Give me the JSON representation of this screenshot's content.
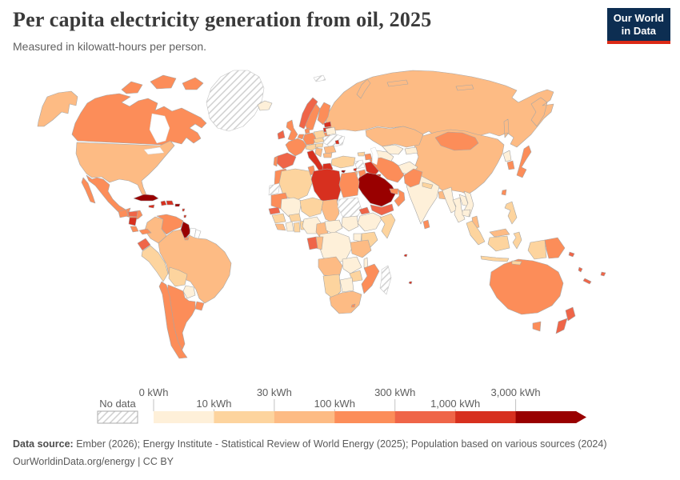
{
  "header": {
    "title": "Per capita electricity generation from oil, 2025",
    "subtitle": "Measured in kilowatt-hours per person.",
    "logo": {
      "line1": "Our World",
      "line2": "in Data",
      "bg_color": "#0d2e52",
      "accent_color": "#dc2a16"
    }
  },
  "legend": {
    "no_data_label": "No data",
    "ticks": [
      "0 kWh",
      "10 kWh",
      "30 kWh",
      "100 kWh",
      "300 kWh",
      "1,000 kWh",
      "3,000 kWh"
    ],
    "tick_color": "#c2c2c2",
    "hatch_line_color": "#cccccc"
  },
  "footer": {
    "source_label": "Data source:",
    "source_text": " Ember (2026); Energy Institute - Statistical Review of World Energy (2025); Population based on various sources (2024)",
    "line2": "OurWorldinData.org/energy | CC BY"
  },
  "chart_data": {
    "type": "choropleth",
    "title": "Per capita electricity generation from oil, 2025",
    "subtitle": "Measured in kilowatt-hours per person.",
    "unit": "kWh per person",
    "year": 2025,
    "legend_style": "binned color scale with arrow for top bin; hatched = no data",
    "bins": [
      {
        "range": "0-10 kWh",
        "color": "#fef0d9"
      },
      {
        "range": "10-30 kWh",
        "color": "#fdd49e"
      },
      {
        "range": "30-100 kWh",
        "color": "#fdbb84"
      },
      {
        "range": "100-300 kWh",
        "color": "#fc8d59"
      },
      {
        "range": "300-1,000 kWh",
        "color": "#ef6548"
      },
      {
        "range": "1,000-3,000 kWh",
        "color": "#d7301f"
      },
      {
        "range": "3,000+ kWh",
        "color": "#990000"
      }
    ],
    "countries": {
      "canada": {
        "name": "Canada",
        "bin": 3
      },
      "usa": {
        "name": "United States",
        "bin": 2
      },
      "mexico": {
        "name": "Mexico",
        "bin": 3
      },
      "greenland": {
        "name": "Greenland",
        "bin": "no_data"
      },
      "iceland": {
        "name": "Iceland",
        "bin": 0
      },
      "guatemala": {
        "name": "Guatemala",
        "bin": 3
      },
      "honduras": {
        "name": "Honduras",
        "bin": 4
      },
      "nicaragua": {
        "name": "Nicaragua",
        "bin": 5
      },
      "costarica": {
        "name": "Costa Rica",
        "bin": 3
      },
      "panama": {
        "name": "Panama",
        "bin": 3
      },
      "cuba": {
        "name": "Cuba",
        "bin": 6
      },
      "jamaica": {
        "name": "Jamaica",
        "bin": 5
      },
      "haiti": {
        "name": "Haiti",
        "bin": 5
      },
      "dominicanrep": {
        "name": "Dominican Republic",
        "bin": 5
      },
      "puertorico": {
        "name": "Puerto Rico",
        "bin": 6
      },
      "lesserantilles": {
        "name": "Lesser Antilles",
        "bin": 5
      },
      "trinidad": {
        "name": "Trinidad and Tobago",
        "bin": 3
      },
      "colombia": {
        "name": "Colombia",
        "bin": 2
      },
      "venezuela": {
        "name": "Venezuela",
        "bin": 3
      },
      "guyana": {
        "name": "Guyana",
        "bin": 6
      },
      "suriname": {
        "name": "Suriname",
        "bin": "none"
      },
      "frenchguiana": {
        "name": "French Guiana",
        "bin": "none"
      },
      "ecuador": {
        "name": "Ecuador",
        "bin": 4
      },
      "peru": {
        "name": "Peru",
        "bin": 1
      },
      "brazil": {
        "name": "Brazil",
        "bin": 2
      },
      "bolivia": {
        "name": "Bolivia",
        "bin": 1
      },
      "paraguay": {
        "name": "Paraguay",
        "bin": 0
      },
      "uruguay": {
        "name": "Uruguay",
        "bin": 3
      },
      "chile": {
        "name": "Chile",
        "bin": 3
      },
      "argentina": {
        "name": "Argentina",
        "bin": 3
      },
      "ireland": {
        "name": "Ireland",
        "bin": 4
      },
      "uk": {
        "name": "United Kingdom",
        "bin": 3
      },
      "portugal": {
        "name": "Portugal",
        "bin": 3
      },
      "spain": {
        "name": "Spain",
        "bin": 4
      },
      "france": {
        "name": "France",
        "bin": 3
      },
      "benelux": {
        "name": "Netherlands/Belgium",
        "bin": 3
      },
      "germany": {
        "name": "Germany",
        "bin": 3
      },
      "denmark": {
        "name": "Denmark",
        "bin": 3
      },
      "norway": {
        "name": "Norway",
        "bin": 4
      },
      "sweden": {
        "name": "Sweden",
        "bin": 3
      },
      "finland": {
        "name": "Finland",
        "bin": 3
      },
      "estonia": {
        "name": "Estonia",
        "bin": 5
      },
      "latvia": {
        "name": "Latvia",
        "bin": 5
      },
      "lithuania": {
        "name": "Lithuania",
        "bin": 3
      },
      "poland": {
        "name": "Poland",
        "bin": 1
      },
      "belarus": {
        "name": "Belarus",
        "bin": 0
      },
      "ukraine": {
        "name": "Ukraine",
        "bin": "no_data"
      },
      "moldova": {
        "name": "Moldova",
        "bin": 5
      },
      "czechia": {
        "name": "Czechia/Slovakia",
        "bin": 1
      },
      "switzerland": {
        "name": "Switzerland/Austria",
        "bin": 1
      },
      "hungary": {
        "name": "Hungary",
        "bin": 1
      },
      "romania": {
        "name": "Romania",
        "bin": 2
      },
      "balkans": {
        "name": "Serbia/Bosnia/Croatia",
        "bin": 2
      },
      "bulgaria": {
        "name": "Bulgaria",
        "bin": 2
      },
      "italy": {
        "name": "Italy",
        "bin": 5
      },
      "greece": {
        "name": "Greece",
        "bin": 5
      },
      "turkey": {
        "name": "Turkey",
        "bin": 1
      },
      "cyprus": {
        "name": "Cyprus",
        "bin": 6
      },
      "svalbard": {
        "name": "Svalbard",
        "bin": "no_data"
      },
      "georgia": {
        "name": "Georgia",
        "bin": 1
      },
      "azerbaijan": {
        "name": "Azerbaijan",
        "bin": 3
      },
      "russia": {
        "name": "Russia",
        "bin": 2
      },
      "kazakhstan": {
        "name": "Kazakhstan",
        "bin": 2
      },
      "uzbekistan": {
        "name": "Uzbekistan",
        "bin": 0
      },
      "turkmenistan": {
        "name": "Turkmenistan",
        "bin": 0
      },
      "kyrgyzstan": {
        "name": "Kyrgyzstan/Tajikistan",
        "bin": 0
      },
      "mongolia": {
        "name": "Mongolia",
        "bin": 3
      },
      "china": {
        "name": "China",
        "bin": 2
      },
      "northkorea": {
        "name": "North Korea",
        "bin": 0
      },
      "southkorea": {
        "name": "South Korea",
        "bin": 3
      },
      "japan": {
        "name": "Japan",
        "bin": 3
      },
      "taiwan": {
        "name": "Taiwan",
        "bin": 3
      },
      "syria": {
        "name": "Syria",
        "bin": "no_data"
      },
      "lebanon": {
        "name": "Lebanon",
        "bin": 5
      },
      "israel": {
        "name": "Israel",
        "bin": 2
      },
      "jordan": {
        "name": "Jordan",
        "bin": 3
      },
      "iraq": {
        "name": "Iraq",
        "bin": 5
      },
      "kuwait": {
        "name": "Kuwait",
        "bin": 5
      },
      "saudiarabia": {
        "name": "Saudi Arabia",
        "bin": 6
      },
      "uae": {
        "name": "United Arab Emirates/Qatar",
        "bin": 3
      },
      "oman": {
        "name": "Oman",
        "bin": 3
      },
      "yemen": {
        "name": "Yemen",
        "bin": 4
      },
      "iran": {
        "name": "Iran",
        "bin": 3
      },
      "afghanistan": {
        "name": "Afghanistan",
        "bin": 0
      },
      "pakistan": {
        "name": "Pakistan",
        "bin": 3
      },
      "india": {
        "name": "India",
        "bin": 0
      },
      "nepal": {
        "name": "Nepal",
        "bin": 1
      },
      "bangladesh": {
        "name": "Bangladesh",
        "bin": 2
      },
      "srilanka": {
        "name": "Sri Lanka",
        "bin": 3
      },
      "myanmar": {
        "name": "Myanmar",
        "bin": 0
      },
      "thailand": {
        "name": "Thailand",
        "bin": 0
      },
      "laos": {
        "name": "Laos",
        "bin": 0
      },
      "vietnam": {
        "name": "Vietnam",
        "bin": 0
      },
      "cambodia": {
        "name": "Cambodia",
        "bin": 0
      },
      "malaysia": {
        "name": "Malaysia",
        "bin": 2
      },
      "philippines": {
        "name": "Philippines",
        "bin": 1
      },
      "indonesia": {
        "name": "Indonesia",
        "bin": 1
      },
      "png": {
        "name": "Papua New Guinea",
        "bin": 3
      },
      "australia": {
        "name": "Australia",
        "bin": 3
      },
      "newzealand": {
        "name": "New Zealand",
        "bin": 4
      },
      "solomon": {
        "name": "Solomon Islands",
        "bin": 4
      },
      "vanuatu": {
        "name": "Vanuatu",
        "bin": 4
      },
      "fiji": {
        "name": "Fiji",
        "bin": 4
      },
      "newcaledonia": {
        "name": "New Caledonia",
        "bin": 4
      },
      "morocco": {
        "name": "Morocco",
        "bin": 3
      },
      "wsahara": {
        "name": "Western Sahara",
        "bin": "no_data"
      },
      "algeria": {
        "name": "Algeria",
        "bin": 1
      },
      "tunisia": {
        "name": "Tunisia",
        "bin": 3
      },
      "libya": {
        "name": "Libya",
        "bin": 5
      },
      "egypt": {
        "name": "Egypt",
        "bin": 3
      },
      "mauritania": {
        "name": "Mauritania",
        "bin": 3
      },
      "mali": {
        "name": "Mali",
        "bin": 0
      },
      "niger": {
        "name": "Niger",
        "bin": 1
      },
      "chad": {
        "name": "Chad",
        "bin": 2
      },
      "sudan": {
        "name": "Sudan",
        "bin": "no_data"
      },
      "southsudan": {
        "name": "South Sudan",
        "bin": 0
      },
      "eritrea": {
        "name": "Eritrea",
        "bin": 4
      },
      "djibouti": {
        "name": "Djibouti",
        "bin": 4
      },
      "senegal": {
        "name": "Senegal",
        "bin": 4
      },
      "guinea": {
        "name": "Guinea",
        "bin": 1
      },
      "sierraleone": {
        "name": "Sierra Leone/Liberia",
        "bin": 2
      },
      "ivorycoast": {
        "name": "Cote d'Ivoire",
        "bin": 0
      },
      "ghana": {
        "name": "Ghana",
        "bin": 1
      },
      "togobenin": {
        "name": "Togo/Benin",
        "bin": 1
      },
      "burkinafaso": {
        "name": "Burkina Faso",
        "bin": 1
      },
      "nigeria": {
        "name": "Nigeria",
        "bin": 0
      },
      "cameroon": {
        "name": "Cameroon",
        "bin": 2
      },
      "car": {
        "name": "Central African Republic",
        "bin": 0
      },
      "ethiopia": {
        "name": "Ethiopia",
        "bin": 0
      },
      "somalia": {
        "name": "Somalia",
        "bin": 1
      },
      "kenya": {
        "name": "Kenya",
        "bin": 1
      },
      "uganda": {
        "name": "Uganda",
        "bin": 0
      },
      "rwandaburundi": {
        "name": "Rwanda/Burundi",
        "bin": 4
      },
      "drc": {
        "name": "Democratic Republic of Congo",
        "bin": 0
      },
      "congo": {
        "name": "Congo",
        "bin": 2
      },
      "gabon": {
        "name": "Gabon",
        "bin": 4
      },
      "tanzania": {
        "name": "Tanzania",
        "bin": 2
      },
      "angola": {
        "name": "Angola",
        "bin": 2
      },
      "zambia": {
        "name": "Zambia",
        "bin": 0
      },
      "malawi": {
        "name": "Malawi",
        "bin": 0
      },
      "mozambique": {
        "name": "Mozambique",
        "bin": 3
      },
      "zimbabwe": {
        "name": "Zimbabwe",
        "bin": 1
      },
      "botswana": {
        "name": "Botswana",
        "bin": 0
      },
      "namibia": {
        "name": "Namibia",
        "bin": 1
      },
      "southafrica": {
        "name": "South Africa",
        "bin": 2
      },
      "lesotho": {
        "name": "Lesotho",
        "bin": 3
      },
      "madagascar": {
        "name": "Madagascar",
        "bin": "no_data"
      },
      "mauritius": {
        "name": "Comoros/Mauritius",
        "bin": 5
      }
    }
  }
}
